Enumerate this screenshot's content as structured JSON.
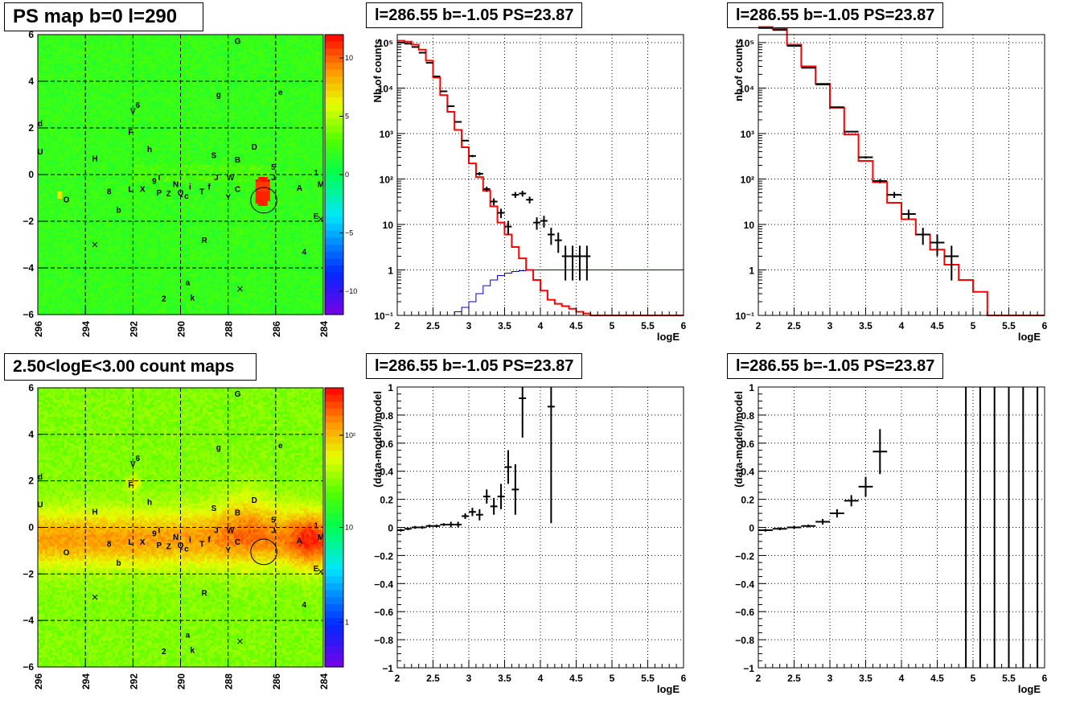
{
  "colors": {
    "red": "#ff0000",
    "blue": "#0000cc",
    "black": "#000000",
    "grid": "#000000"
  },
  "panels": {
    "map_top": {
      "title": "PS map b=0 l=290"
    },
    "map_bottom": {
      "title": "2.50<logE<3.00 count maps"
    },
    "spec_left": {
      "title": "l=286.55 b=-1.05 PS=23.87"
    },
    "spec_right": {
      "title": "l=286.55 b=-1.05 PS=23.87"
    },
    "resid_left": {
      "title": "l=286.55 b=-1.05 PS=23.87"
    },
    "resid_right": {
      "title": "l=286.55 b=-1.05 PS=23.87"
    }
  },
  "chart_data": [
    {
      "id": "map_top",
      "type": "heatmap",
      "title": "PS map b=0 l=290",
      "x_ticks": [
        "296",
        "294",
        "292",
        "290",
        "288",
        "286",
        "284"
      ],
      "y_ticks": [
        "−6",
        "−4",
        "−2",
        "0",
        "2",
        "4",
        "6"
      ],
      "xlim": [
        296,
        284
      ],
      "ylim": [
        -6,
        6
      ],
      "colorbar_ticks": [
        "10",
        "5",
        "0",
        "−5",
        "−10"
      ],
      "colorbar_range": [
        -12,
        12
      ],
      "labels": [
        {
          "t": "G",
          "l": 287.6,
          "b": 5.75
        },
        {
          "t": "e",
          "l": 285.8,
          "b": 3.55
        },
        {
          "t": "g",
          "l": 288.4,
          "b": 3.45
        },
        {
          "t": "6",
          "l": 291.8,
          "b": 3.0
        },
        {
          "t": "V",
          "l": 292.0,
          "b": 2.75
        },
        {
          "t": "d",
          "l": 295.9,
          "b": 2.2
        },
        {
          "t": "F",
          "l": 292.1,
          "b": 1.85
        },
        {
          "t": "D",
          "l": 286.9,
          "b": 1.2
        },
        {
          "t": "h",
          "l": 291.3,
          "b": 1.1
        },
        {
          "t": "U",
          "l": 295.9,
          "b": 1.0
        },
        {
          "t": "S",
          "l": 288.6,
          "b": 0.85
        },
        {
          "t": "H",
          "l": 293.6,
          "b": 0.7
        },
        {
          "t": "B",
          "l": 287.6,
          "b": 0.65
        },
        {
          "t": "5",
          "l": 286.1,
          "b": 0.35
        },
        {
          "t": "1",
          "l": 284.3,
          "b": 0.1
        },
        {
          "t": "W",
          "l": 287.9,
          "b": -0.1
        },
        {
          "t": "J",
          "l": 286.1,
          "b": -0.1
        },
        {
          "t": "9",
          "l": 291.1,
          "b": -0.25
        },
        {
          "t": "J",
          "l": 288.5,
          "b": -0.1
        },
        {
          "t": "I",
          "l": 290.9,
          "b": -0.1
        },
        {
          "t": "N",
          "l": 290.2,
          "b": -0.4
        },
        {
          "t": "M",
          "l": 284.1,
          "b": -0.4
        },
        {
          "t": "A",
          "l": 285.0,
          "b": -0.55
        },
        {
          "t": "i",
          "l": 289.6,
          "b": -0.5
        },
        {
          "t": "f",
          "l": 288.8,
          "b": -0.5
        },
        {
          "t": "C",
          "l": 287.6,
          "b": -0.6
        },
        {
          "t": "L",
          "l": 292.1,
          "b": -0.6
        },
        {
          "t": "X",
          "l": 291.6,
          "b": -0.6
        },
        {
          "t": "T",
          "l": 289.1,
          "b": -0.7
        },
        {
          "t": "8",
          "l": 293.0,
          "b": -0.7
        },
        {
          "t": "P",
          "l": 290.9,
          "b": -0.75
        },
        {
          "t": "Z",
          "l": 290.5,
          "b": -0.8
        },
        {
          "t": "Q",
          "l": 290.0,
          "b": -0.75
        },
        {
          "t": "c",
          "l": 289.75,
          "b": -0.9
        },
        {
          "t": "Y",
          "l": 288.0,
          "b": -0.95
        },
        {
          "t": "O",
          "l": 294.8,
          "b": -1.05
        },
        {
          "t": "b",
          "l": 292.6,
          "b": -1.5
        },
        {
          "t": "E",
          "l": 284.3,
          "b": -1.75
        },
        {
          "t": "R",
          "l": 289.0,
          "b": -2.8
        },
        {
          "t": "4",
          "l": 284.8,
          "b": -3.3
        },
        {
          "t": "a",
          "l": 289.7,
          "b": -4.6
        },
        {
          "t": "2",
          "l": 290.7,
          "b": -5.3
        },
        {
          "t": "k",
          "l": 289.5,
          "b": -5.25
        }
      ],
      "crosses": [
        {
          "l": 293.6,
          "b": -3.0
        },
        {
          "l": 287.5,
          "b": -4.9
        },
        {
          "l": 284.1,
          "b": -1.9
        }
      ],
      "circle": {
        "l": 286.5,
        "b": -1.1,
        "r": 0.55
      }
    },
    {
      "id": "map_bottom",
      "type": "heatmap",
      "title": "2.50<logE<3.00 count maps",
      "x_ticks": [
        "296",
        "294",
        "292",
        "290",
        "288",
        "286",
        "284"
      ],
      "y_ticks": [
        "−6",
        "−4",
        "−2",
        "0",
        "2",
        "4",
        "6"
      ],
      "xlim": [
        296,
        284
      ],
      "ylim": [
        -6,
        6
      ],
      "colorbar_ticks": [
        "10²",
        "10",
        "1"
      ],
      "colorbar_log": true,
      "labels_same_as": "map_top",
      "circle": {
        "l": 286.5,
        "b": -1.05,
        "r": 0.55
      }
    },
    {
      "id": "spec_left",
      "type": "line",
      "title": "l=286.55 b=-1.05 PS=23.87",
      "xlabel": "logE",
      "ylabel": "Nb of counts",
      "xlim": [
        2,
        6
      ],
      "ylim": [
        0.1,
        150000
      ],
      "ylog": true,
      "x_ticks": [
        "2",
        "2.5",
        "3",
        "3.5",
        "4",
        "4.5",
        "5",
        "5.5",
        "6"
      ],
      "y_ticks": [
        "10⁵",
        "10⁴",
        "10³",
        "10²",
        "10",
        "1",
        "10⁻¹"
      ],
      "model_red": {
        "edges_step": 0.1,
        "values": [
          110000,
          105000,
          90000,
          70000,
          40000,
          17000,
          7000,
          3000,
          1200,
          500,
          220,
          110,
          55,
          25,
          11,
          6,
          3.2,
          1.8,
          1.0,
          0.6,
          0.35,
          0.22,
          0.18,
          0.16,
          0.14,
          0.12,
          0.11,
          0.1,
          0.1,
          0.1,
          0.1,
          0.1,
          0.1,
          0.1,
          0.1,
          0.1,
          0.1,
          0.1,
          0.1,
          0.1
        ]
      },
      "model_blue": {
        "edges_step": 0.1,
        "values": [
          0.1,
          0.1,
          0.1,
          0.1,
          0.1,
          0.1,
          0.1,
          0.1,
          0.12,
          0.15,
          0.2,
          0.3,
          0.45,
          0.6,
          0.75,
          0.85,
          0.92,
          0.96,
          0.98,
          1.0,
          1.0,
          1.0,
          1.0,
          1.0,
          1.0,
          1.0,
          1.0,
          1.0,
          1.0,
          1.0,
          1.0,
          1.0,
          1.0,
          1.0,
          1.0,
          1.0,
          1.0,
          1.0,
          1.0,
          1.0
        ]
      },
      "data_points": [
        {
          "x": 2.05,
          "y": 100000
        },
        {
          "x": 2.15,
          "y": 95000
        },
        {
          "x": 2.25,
          "y": 80000
        },
        {
          "x": 2.35,
          "y": 60000
        },
        {
          "x": 2.45,
          "y": 36000
        },
        {
          "x": 2.55,
          "y": 18000
        },
        {
          "x": 2.65,
          "y": 8500
        },
        {
          "x": 2.75,
          "y": 4000
        },
        {
          "x": 2.85,
          "y": 1800
        },
        {
          "x": 2.95,
          "y": 700
        },
        {
          "x": 3.05,
          "y": 320
        },
        {
          "x": 3.15,
          "y": 130
        },
        {
          "x": 3.25,
          "y": 60
        },
        {
          "x": 3.35,
          "y": 32
        },
        {
          "x": 3.45,
          "y": 18
        },
        {
          "x": 3.55,
          "y": 9
        },
        {
          "x": 3.65,
          "y": 45
        },
        {
          "x": 3.75,
          "y": 48
        },
        {
          "x": 3.85,
          "y": 35
        },
        {
          "x": 3.95,
          "y": 11
        },
        {
          "x": 4.05,
          "y": 12
        },
        {
          "x": 4.15,
          "y": 6
        },
        {
          "x": 4.25,
          "y": 4.5
        },
        {
          "x": 4.35,
          "y": 2
        },
        {
          "x": 4.45,
          "y": 2
        },
        {
          "x": 4.55,
          "y": 2
        },
        {
          "x": 4.65,
          "y": 2
        }
      ]
    },
    {
      "id": "spec_right",
      "type": "line",
      "title": "l=286.55 b=-1.05 PS=23.87",
      "xlabel": "logE",
      "ylabel": "nb of counts",
      "xlim": [
        2,
        6
      ],
      "ylim": [
        0.1,
        150000
      ],
      "ylog": true,
      "x_ticks": [
        "2",
        "2.5",
        "3",
        "3.5",
        "4",
        "4.5",
        "5",
        "5.5",
        "6"
      ],
      "y_ticks": [
        "10⁵",
        "10⁴",
        "10³",
        "10²",
        "10",
        "1",
        "10⁻¹"
      ],
      "model_red": {
        "edges_step": 0.2,
        "values": [
          220000,
          200000,
          90000,
          30000,
          12500,
          3700,
          950,
          250,
          85,
          30,
          13,
          6,
          2.8,
          1.3,
          0.6,
          0.33,
          0.1,
          0.1,
          0.1,
          0.1
        ]
      },
      "data_points": [
        {
          "x": 2.1,
          "y": 210000
        },
        {
          "x": 2.3,
          "y": 190000
        },
        {
          "x": 2.5,
          "y": 85000
        },
        {
          "x": 2.7,
          "y": 28000
        },
        {
          "x": 2.9,
          "y": 12000
        },
        {
          "x": 3.1,
          "y": 3800
        },
        {
          "x": 3.3,
          "y": 1100
        },
        {
          "x": 3.5,
          "y": 300
        },
        {
          "x": 3.7,
          "y": 90
        },
        {
          "x": 3.9,
          "y": 45
        },
        {
          "x": 4.1,
          "y": 17
        },
        {
          "x": 4.3,
          "y": 6
        },
        {
          "x": 4.5,
          "y": 4
        },
        {
          "x": 4.7,
          "y": 2
        }
      ]
    },
    {
      "id": "resid_left",
      "type": "scatter",
      "title": "l=286.55 b=-1.05 PS=23.87",
      "xlabel": "logE",
      "ylabel": "(data-model)/model",
      "xlim": [
        2,
        6
      ],
      "ylim": [
        -1,
        1
      ],
      "x_ticks": [
        "2",
        "2.5",
        "3",
        "3.5",
        "4",
        "4.5",
        "5",
        "5.5",
        "6"
      ],
      "y_ticks": [
        "1",
        "0.8",
        "0.6",
        "0.4",
        "0.2",
        "0",
        "−0.2",
        "−0.4",
        "−0.6",
        "−0.8",
        "−1"
      ],
      "points": [
        {
          "x": 2.05,
          "y": -0.02,
          "e": 0.01
        },
        {
          "x": 2.15,
          "y": -0.01,
          "e": 0.01
        },
        {
          "x": 2.25,
          "y": 0.0,
          "e": 0.01
        },
        {
          "x": 2.35,
          "y": 0.0,
          "e": 0.01
        },
        {
          "x": 2.45,
          "y": 0.01,
          "e": 0.01
        },
        {
          "x": 2.55,
          "y": 0.01,
          "e": 0.01
        },
        {
          "x": 2.65,
          "y": 0.02,
          "e": 0.01
        },
        {
          "x": 2.75,
          "y": 0.02,
          "e": 0.02
        },
        {
          "x": 2.85,
          "y": 0.02,
          "e": 0.02
        },
        {
          "x": 2.95,
          "y": 0.08,
          "e": 0.02
        },
        {
          "x": 3.05,
          "y": 0.11,
          "e": 0.03
        },
        {
          "x": 3.15,
          "y": 0.09,
          "e": 0.04
        },
        {
          "x": 3.25,
          "y": 0.22,
          "e": 0.05
        },
        {
          "x": 3.35,
          "y": 0.15,
          "e": 0.06
        },
        {
          "x": 3.45,
          "y": 0.22,
          "e": 0.09
        },
        {
          "x": 3.55,
          "y": 0.43,
          "e": 0.12
        },
        {
          "x": 3.65,
          "y": 0.27,
          "e": 0.18
        },
        {
          "x": 3.75,
          "y": 0.92,
          "e": 0.28
        },
        {
          "x": 4.15,
          "y": 0.86,
          "e": 0.83
        }
      ]
    },
    {
      "id": "resid_right",
      "type": "scatter",
      "title": "l=286.55 b=-1.05 PS=23.87",
      "xlabel": "logE",
      "ylabel": "(data-model)/model",
      "xlim": [
        2,
        6
      ],
      "ylim": [
        -1,
        1
      ],
      "x_ticks": [
        "2",
        "2.5",
        "3",
        "3.5",
        "4",
        "4.5",
        "5",
        "5.5",
        "6"
      ],
      "y_ticks": [
        "1",
        "0.8",
        "0.6",
        "0.4",
        "0.2",
        "0",
        "−0.2",
        "−0.4",
        "−0.6",
        "−0.8",
        "−1"
      ],
      "points": [
        {
          "x": 2.1,
          "y": -0.02,
          "e": 0.01
        },
        {
          "x": 2.3,
          "y": -0.01,
          "e": 0.01
        },
        {
          "x": 2.5,
          "y": 0.0,
          "e": 0.01
        },
        {
          "x": 2.7,
          "y": 0.01,
          "e": 0.01
        },
        {
          "x": 2.9,
          "y": 0.04,
          "e": 0.02
        },
        {
          "x": 3.1,
          "y": 0.1,
          "e": 0.03
        },
        {
          "x": 3.3,
          "y": 0.19,
          "e": 0.04
        },
        {
          "x": 3.5,
          "y": 0.29,
          "e": 0.07
        },
        {
          "x": 3.7,
          "y": 0.54,
          "e": 0.16
        }
      ],
      "vertical_bars_x": [
        4.9,
        5.1,
        5.3,
        5.5,
        5.7,
        5.9
      ]
    }
  ]
}
